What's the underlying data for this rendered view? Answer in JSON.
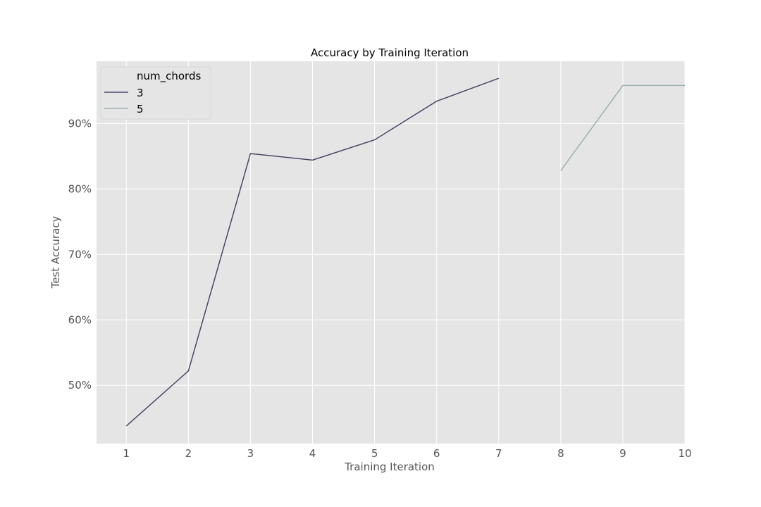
{
  "chart_data": {
    "type": "line",
    "title": "Accuracy by Training Iteration",
    "xlabel": "Training Iteration",
    "ylabel": "Test Accuracy",
    "xlim": [
      0.52,
      10
    ],
    "ylim": [
      41.1,
      99.5
    ],
    "x_ticks": [
      1,
      2,
      3,
      4,
      5,
      6,
      7,
      8,
      9,
      10
    ],
    "x_tick_labels": [
      "1",
      "2",
      "3",
      "4",
      "5",
      "6",
      "7",
      "8",
      "9",
      "10"
    ],
    "y_ticks": [
      50,
      60,
      70,
      80,
      90
    ],
    "y_tick_labels": [
      "50%",
      "60%",
      "70%",
      "80%",
      "90%"
    ],
    "grid": true,
    "background": "#e5e5e5",
    "legend": {
      "title": "num_chords",
      "placement": "top-left"
    },
    "series": [
      {
        "name": "3",
        "color": "#4b4864",
        "x": [
          1,
          2,
          3,
          4,
          5,
          6,
          7
        ],
        "y": [
          43.8,
          52.2,
          85.4,
          84.4,
          87.5,
          93.4,
          96.9
        ]
      },
      {
        "name": "5",
        "color": "#9cb0b1",
        "x": [
          8,
          9,
          10
        ],
        "y": [
          82.8,
          95.8,
          95.8
        ]
      }
    ]
  }
}
